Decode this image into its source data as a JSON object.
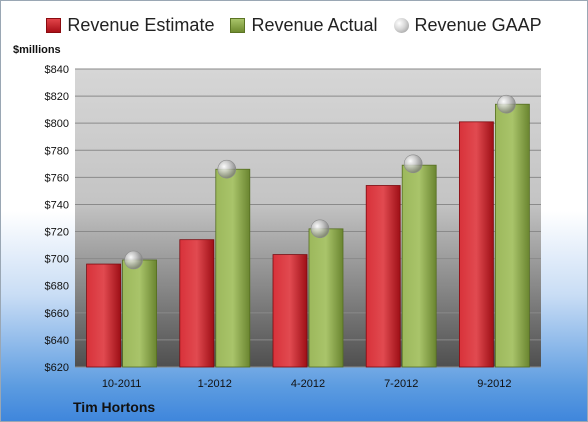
{
  "chart_data": {
    "type": "bar",
    "categories": [
      "10-2011",
      "1-2012",
      "4-2012",
      "7-2012",
      "9-2012"
    ],
    "series": [
      {
        "name": "Revenue Estimate",
        "values": [
          696,
          714,
          703,
          754,
          801
        ],
        "color": "#c1171f"
      },
      {
        "name": "Revenue Actual",
        "values": [
          699,
          766,
          722,
          769,
          814
        ],
        "color": "#8aa84a"
      },
      {
        "name": "Revenue GAAP",
        "values": [
          699,
          766,
          722,
          770,
          814
        ],
        "color": "#c8c8c8",
        "marker": "sphere"
      }
    ],
    "title": "",
    "ylabel": "$millions",
    "ylim": [
      620,
      840
    ],
    "yticks": [
      620,
      640,
      660,
      680,
      700,
      720,
      740,
      760,
      780,
      800,
      820,
      840
    ],
    "ytick_labels": [
      "$620",
      "$640",
      "$660",
      "$680",
      "$700",
      "$720",
      "$740",
      "$760",
      "$780",
      "$800",
      "$820",
      "$840"
    ],
    "grid": true,
    "legend_position": "top",
    "company": "Tim Hortons"
  }
}
